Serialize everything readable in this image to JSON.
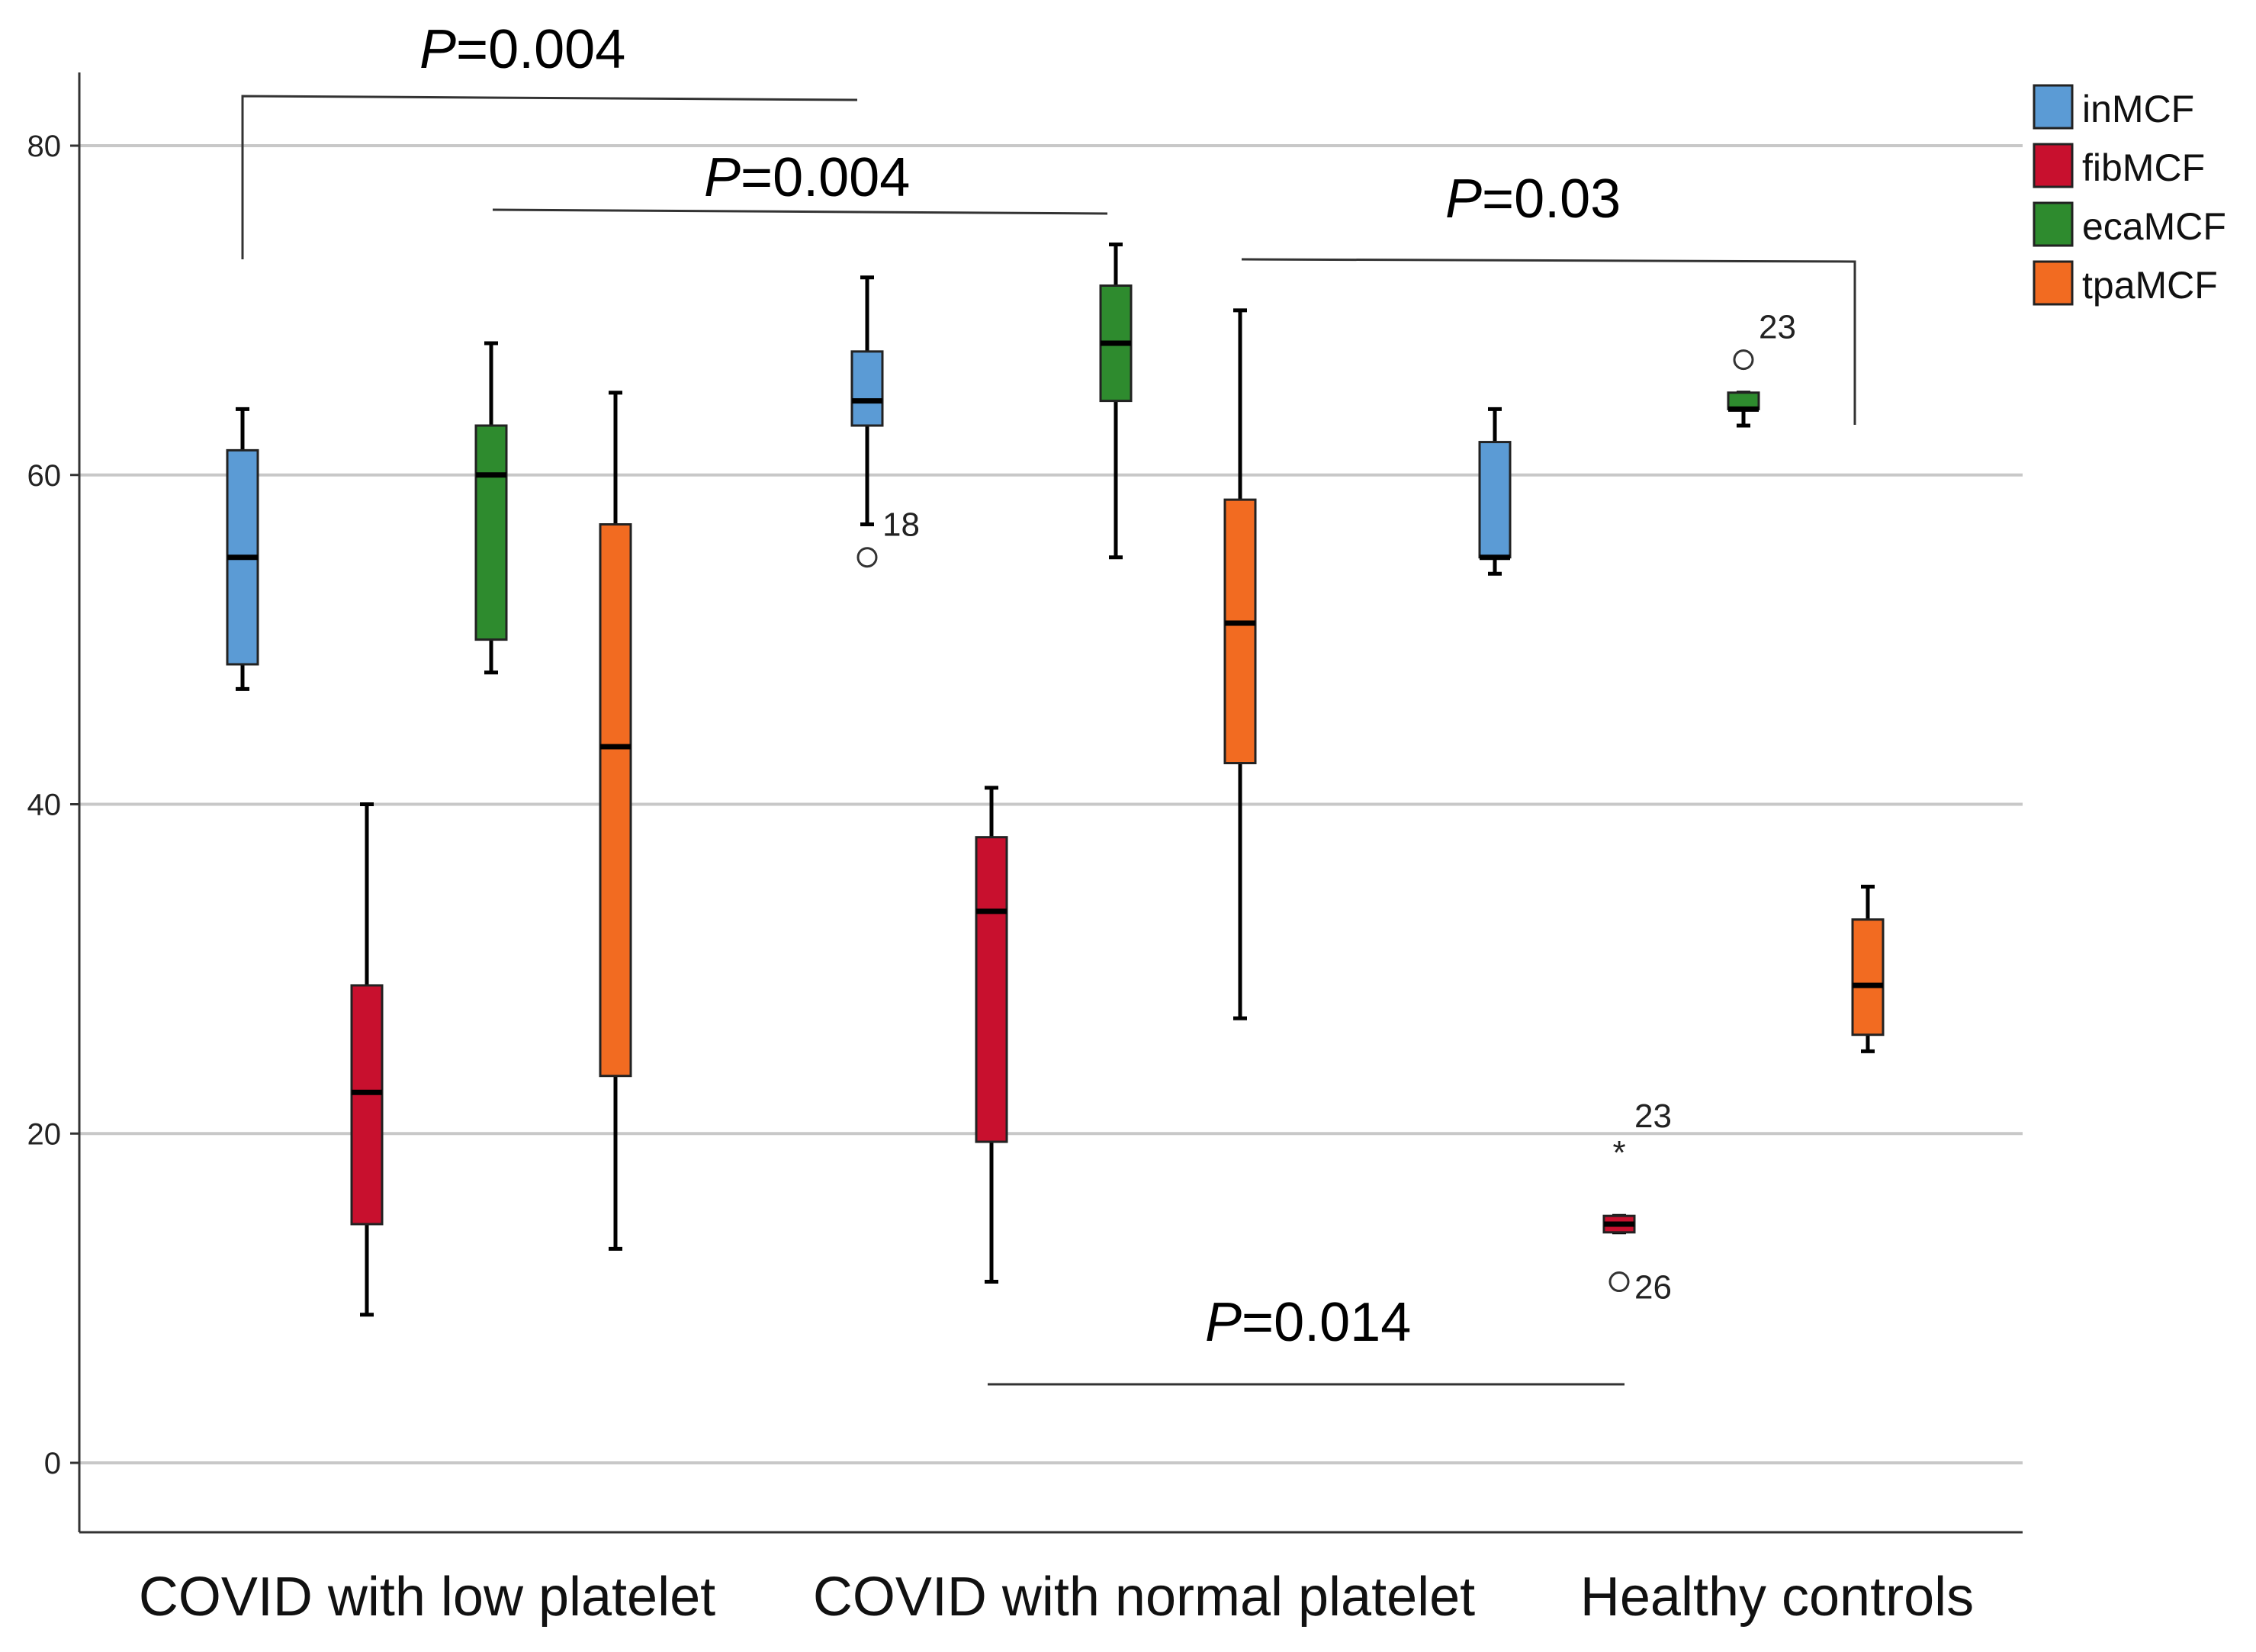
{
  "chart_data": {
    "type": "boxplot",
    "title": "",
    "xlabel": "",
    "ylabel": "",
    "ylim": [
      -4,
      84
    ],
    "yticks": [
      0,
      20,
      40,
      60,
      80
    ],
    "grid": true,
    "legend_position": "top-right",
    "categories": [
      "COVID with low platelet",
      "COVID with normal platelet",
      "Healthy controls"
    ],
    "series": [
      {
        "name": "inMCF",
        "color": "#5B9BD5",
        "boxes": [
          {
            "min": 47,
            "q1": 48.5,
            "median": 55,
            "q3": 61.5,
            "max": 64
          },
          {
            "min": 57,
            "q1": 63,
            "median": 64.5,
            "q3": 67.5,
            "max": 72
          },
          {
            "min": 54,
            "q1": 55,
            "median": 55,
            "q3": 62,
            "max": 64
          }
        ]
      },
      {
        "name": "fibMCF",
        "color": "#C8102E",
        "boxes": [
          {
            "min": 9,
            "q1": 14.5,
            "median": 22.5,
            "q3": 29,
            "max": 40
          },
          {
            "min": 11,
            "q1": 19.5,
            "median": 33.5,
            "q3": 38,
            "max": 41
          },
          {
            "min": 14,
            "q1": 14,
            "median": 14.5,
            "q3": 15,
            "max": 15
          }
        ]
      },
      {
        "name": "ecaMCF",
        "color": "#2E8B2E",
        "boxes": [
          {
            "min": 48,
            "q1": 50,
            "median": 60,
            "q3": 63,
            "max": 68
          },
          {
            "min": 55,
            "q1": 64.5,
            "median": 68,
            "q3": 71.5,
            "max": 74
          },
          {
            "min": 63,
            "q1": 64,
            "median": 64,
            "q3": 65,
            "max": 65
          }
        ]
      },
      {
        "name": "tpaMCF",
        "color": "#F26B21",
        "boxes": [
          {
            "min": 13,
            "q1": 23.5,
            "median": 43.5,
            "q3": 57,
            "max": 65
          },
          {
            "min": 27,
            "q1": 42.5,
            "median": 51,
            "q3": 58.5,
            "max": 70
          },
          {
            "min": 25,
            "q1": 26,
            "median": 29,
            "q3": 33,
            "max": 35
          }
        ]
      }
    ],
    "outliers": [
      {
        "series": "inMCF",
        "category": "COVID with normal platelet",
        "value": 55,
        "marker": "circle",
        "label": "18"
      },
      {
        "series": "ecaMCF",
        "category": "Healthy controls",
        "value": 67,
        "marker": "circle",
        "label": "23"
      },
      {
        "series": "fibMCF",
        "category": "Healthy controls",
        "value": 19,
        "marker": "star",
        "label": "23"
      },
      {
        "series": "fibMCF",
        "category": "Healthy controls",
        "value": 11,
        "marker": "circle",
        "label": "26"
      }
    ],
    "annotations": [
      {
        "p_symbol": "P",
        "p_value": "=0.004"
      },
      {
        "p_symbol": "P",
        "p_value": "=0.004"
      },
      {
        "p_symbol": "P",
        "p_value": "=0.03"
      },
      {
        "p_symbol": "P",
        "p_value": "=0.014"
      }
    ]
  }
}
